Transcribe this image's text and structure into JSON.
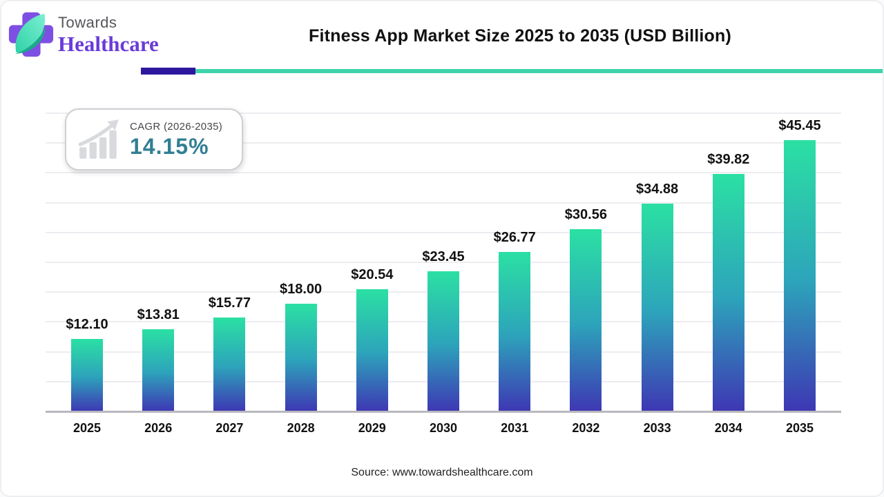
{
  "logo": {
    "top_text": "Towards",
    "bottom_text": "Healthcare",
    "cross_color": "#7e4fe3",
    "leaf_color_light": "#63eec6",
    "leaf_color_dark": "#1ba88b",
    "top_text_color": "#55565a",
    "bottom_text_color": "#6a3bd9"
  },
  "header": {
    "title": "Fitness App Market Size 2025 to 2035 (USD Billion)",
    "underline_accent_color": "#2d189e",
    "underline_line_color": "#3ed3ab"
  },
  "cagr_badge": {
    "label": "CAGR (2026-2035)",
    "value": "14.15%",
    "value_color": "#317f93",
    "icon": "bar-chart-growth-arrow-icon",
    "icon_color": "#d9dadd"
  },
  "chart_data": {
    "type": "bar",
    "title": "Fitness App Market Size 2025 to 2035 (USD Billion)",
    "categories": [
      "2025",
      "2026",
      "2027",
      "2028",
      "2029",
      "2030",
      "2031",
      "2032",
      "2033",
      "2034",
      "2035"
    ],
    "values": [
      12.1,
      13.81,
      15.77,
      18.0,
      20.54,
      23.45,
      26.77,
      30.56,
      34.88,
      39.82,
      45.45
    ],
    "value_labels": [
      "$12.10",
      "$13.81",
      "$15.77",
      "$18.00",
      "$20.54",
      "$23.45",
      "$26.77",
      "$30.56",
      "$34.88",
      "$39.82",
      "$45.45"
    ],
    "xlabel": "",
    "ylabel": "",
    "ylim": [
      0,
      50
    ],
    "gridline_step": 5,
    "grid": true,
    "legend": false,
    "bar_gradient_top": "#2be0a3",
    "bar_gradient_mid": "#2da4bb",
    "bar_gradient_bottom": "#3e37b3",
    "axis_line_color": "#b7b7bd",
    "gridline_color": "#ededf1"
  },
  "footer": {
    "source": "Source: www.towardshealthcare.com"
  }
}
